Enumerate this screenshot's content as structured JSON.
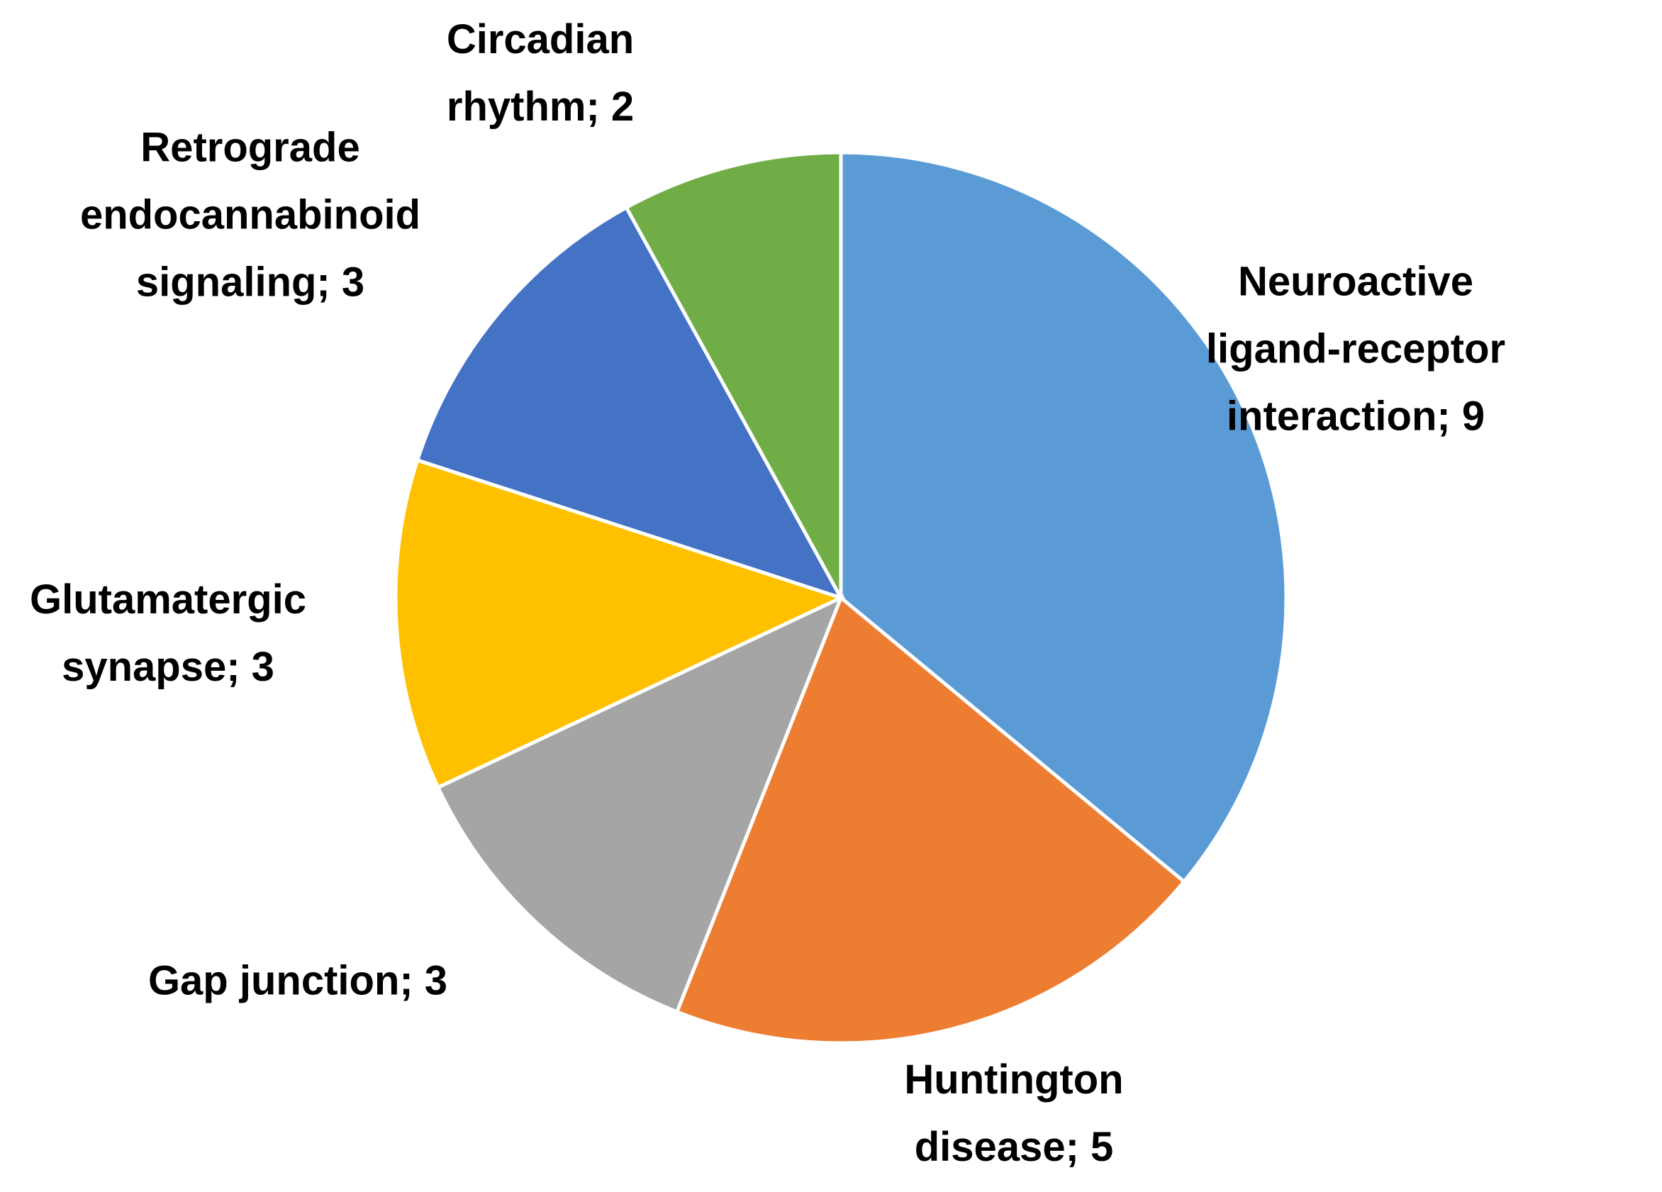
{
  "figure": {
    "background_color": "#ffffff",
    "text_color": "#000000"
  },
  "chart_data": {
    "type": "pie",
    "title": "",
    "legend_position": "none",
    "labels_position": "outside",
    "start_angle_deg": 0,
    "direction": "clockwise",
    "total": 25,
    "separator_color": "#ffffff",
    "slices": [
      {
        "label": "Neuroactive ligand-receptor interaction",
        "value": 9,
        "color": "#5B9BD5",
        "label_display": "Neuroactive\nligand-receptor\ninteraction; 9"
      },
      {
        "label": "Huntington disease",
        "value": 5,
        "color": "#ED7D31",
        "label_display": "Huntington\ndisease; 5"
      },
      {
        "label": "Gap junction",
        "value": 3,
        "color": "#A5A5A5",
        "label_display": "Gap junction; 3"
      },
      {
        "label": "Glutamatergic synapse",
        "value": 3,
        "color": "#FFC000",
        "label_display": "Glutamatergic\nsynapse; 3"
      },
      {
        "label": "Retrograde endocannabinoid signaling",
        "value": 3,
        "color": "#4472C4",
        "label_display": "Retrograde\nendocannabinoid\nsignaling; 3"
      },
      {
        "label": "Circadian rhythm",
        "value": 2,
        "color": "#70AD47",
        "label_display": "Circadian\nrhythm; 2"
      }
    ]
  }
}
